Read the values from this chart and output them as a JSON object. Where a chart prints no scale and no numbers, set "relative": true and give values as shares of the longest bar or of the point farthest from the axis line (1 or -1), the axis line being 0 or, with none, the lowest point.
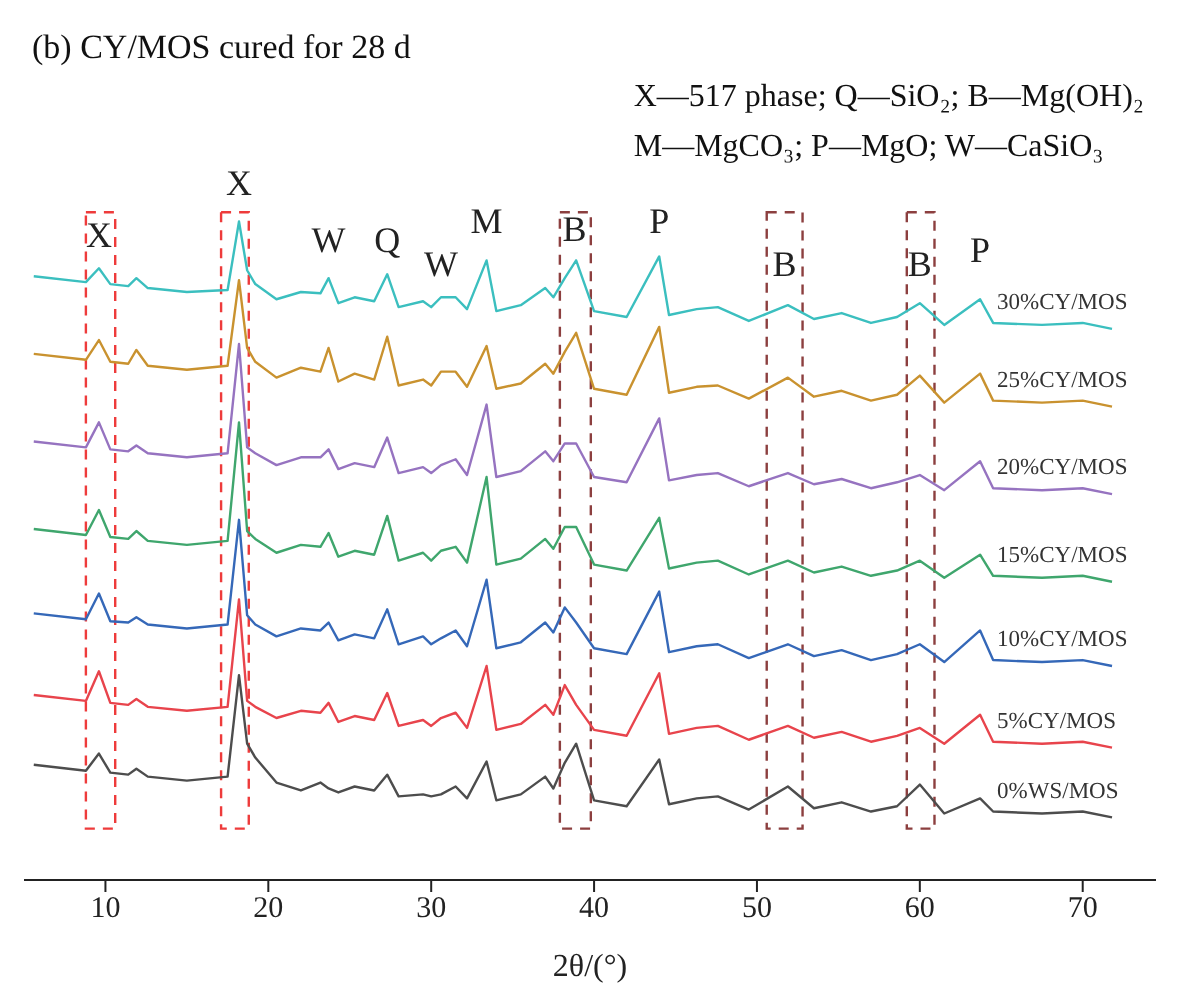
{
  "chart_data": {
    "type": "line",
    "title": "(b) CY/MOS cured for 28 d",
    "xlabel": "2θ/(°)",
    "relative": true,
    "legend": false,
    "grid": false,
    "marker": "none",
    "line_style": "solid",
    "xlim": [
      5,
      74.5
    ],
    "xticks": [
      10,
      20,
      30,
      40,
      50,
      60,
      70
    ],
    "x": [
      5.6,
      8.8,
      9.6,
      10.3,
      11.4,
      11.9,
      12.6,
      15.0,
      17.5,
      18.2,
      18.7,
      19.2,
      20.5,
      22.0,
      23.2,
      23.7,
      24.3,
      25.3,
      26.5,
      27.3,
      28.0,
      29.5,
      30.0,
      30.6,
      31.5,
      32.2,
      33.4,
      34.0,
      35.5,
      37.0,
      37.5,
      38.2,
      38.9,
      40.0,
      42.0,
      44.0,
      44.6,
      46.3,
      47.6,
      49.5,
      51.9,
      53.5,
      55.2,
      57.0,
      58.6,
      60.0,
      61.5,
      63.7,
      64.5,
      67.5,
      70.0,
      71.8
    ],
    "series": [
      {
        "name": "30%CY/MOS",
        "color": "#3bbfbf",
        "values": [
          0.917,
          0.908,
          0.929,
          0.905,
          0.902,
          0.914,
          0.899,
          0.893,
          0.896,
          1,
          0.926,
          0.905,
          0.882,
          0.893,
          0.891,
          0.914,
          0.876,
          0.885,
          0.879,
          0.92,
          0.87,
          0.879,
          0.87,
          0.885,
          0.885,
          0.867,
          0.941,
          0.864,
          0.873,
          0.899,
          0.885,
          0.914,
          0.941,
          0.864,
          0.855,
          0.947,
          0.858,
          0.867,
          0.87,
          0.849,
          0.873,
          0.852,
          0.861,
          0.846,
          0.855,
          0.876,
          0.843,
          0.882,
          0.846,
          0.843,
          0.846,
          0.837
        ]
      },
      {
        "name": "25%CY/MOS",
        "color": "#c9922f",
        "values": [
          0.799,
          0.79,
          0.82,
          0.787,
          0.784,
          0.805,
          0.781,
          0.775,
          0.781,
          0.911,
          0.808,
          0.787,
          0.763,
          0.778,
          0.772,
          0.808,
          0.757,
          0.769,
          0.76,
          0.825,
          0.751,
          0.76,
          0.751,
          0.772,
          0.772,
          0.749,
          0.811,
          0.746,
          0.754,
          0.784,
          0.769,
          0.802,
          0.831,
          0.746,
          0.737,
          0.84,
          0.74,
          0.749,
          0.751,
          0.731,
          0.763,
          0.734,
          0.743,
          0.728,
          0.737,
          0.766,
          0.725,
          0.769,
          0.728,
          0.725,
          0.728,
          0.719
        ]
      },
      {
        "name": "20%CY/MOS",
        "color": "#9673c0",
        "values": [
          0.666,
          0.657,
          0.695,
          0.654,
          0.651,
          0.66,
          0.648,
          0.642,
          0.648,
          0.814,
          0.657,
          0.648,
          0.63,
          0.642,
          0.642,
          0.654,
          0.624,
          0.633,
          0.627,
          0.672,
          0.618,
          0.627,
          0.618,
          0.63,
          0.639,
          0.615,
          0.722,
          0.612,
          0.621,
          0.651,
          0.636,
          0.663,
          0.663,
          0.612,
          0.604,
          0.701,
          0.607,
          0.615,
          0.618,
          0.598,
          0.618,
          0.601,
          0.609,
          0.595,
          0.604,
          0.615,
          0.592,
          0.636,
          0.595,
          0.592,
          0.595,
          0.586
        ]
      },
      {
        "name": "15%CY/MOS",
        "color": "#3fa66d",
        "values": [
          0.533,
          0.524,
          0.562,
          0.521,
          0.518,
          0.53,
          0.515,
          0.509,
          0.515,
          0.695,
          0.53,
          0.518,
          0.497,
          0.509,
          0.506,
          0.527,
          0.491,
          0.5,
          0.494,
          0.553,
          0.485,
          0.497,
          0.485,
          0.5,
          0.506,
          0.482,
          0.612,
          0.479,
          0.488,
          0.518,
          0.503,
          0.536,
          0.536,
          0.479,
          0.47,
          0.55,
          0.473,
          0.482,
          0.485,
          0.464,
          0.485,
          0.467,
          0.476,
          0.462,
          0.47,
          0.485,
          0.459,
          0.494,
          0.462,
          0.459,
          0.462,
          0.453
        ]
      },
      {
        "name": "10%CY/MOS",
        "color": "#3568b8",
        "values": [
          0.405,
          0.396,
          0.435,
          0.393,
          0.391,
          0.399,
          0.388,
          0.382,
          0.388,
          0.547,
          0.402,
          0.388,
          0.37,
          0.382,
          0.379,
          0.391,
          0.364,
          0.373,
          0.367,
          0.411,
          0.358,
          0.37,
          0.358,
          0.367,
          0.379,
          0.355,
          0.456,
          0.352,
          0.361,
          0.391,
          0.376,
          0.414,
          0.391,
          0.352,
          0.343,
          0.438,
          0.346,
          0.355,
          0.358,
          0.337,
          0.358,
          0.34,
          0.349,
          0.334,
          0.343,
          0.358,
          0.331,
          0.379,
          0.334,
          0.331,
          0.334,
          0.325
        ]
      },
      {
        "name": "5%CY/MOS",
        "color": "#e8444c",
        "values": [
          0.281,
          0.272,
          0.317,
          0.269,
          0.266,
          0.275,
          0.263,
          0.257,
          0.263,
          0.426,
          0.272,
          0.263,
          0.246,
          0.257,
          0.254,
          0.269,
          0.24,
          0.249,
          0.243,
          0.284,
          0.234,
          0.243,
          0.234,
          0.246,
          0.254,
          0.231,
          0.325,
          0.228,
          0.237,
          0.266,
          0.251,
          0.296,
          0.266,
          0.228,
          0.219,
          0.314,
          0.222,
          0.231,
          0.234,
          0.213,
          0.234,
          0.216,
          0.225,
          0.21,
          0.219,
          0.231,
          0.207,
          0.251,
          0.21,
          0.207,
          0.21,
          0.201
        ]
      },
      {
        "name": "0%WS/MOS",
        "color": "#4d4d4d",
        "values": [
          0.175,
          0.166,
          0.192,
          0.163,
          0.16,
          0.169,
          0.157,
          0.151,
          0.157,
          0.311,
          0.207,
          0.186,
          0.148,
          0.136,
          0.148,
          0.139,
          0.133,
          0.142,
          0.136,
          0.16,
          0.127,
          0.13,
          0.127,
          0.13,
          0.142,
          0.124,
          0.18,
          0.121,
          0.13,
          0.157,
          0.139,
          0.178,
          0.207,
          0.121,
          0.112,
          0.183,
          0.115,
          0.124,
          0.127,
          0.107,
          0.142,
          0.109,
          0.118,
          0.104,
          0.112,
          0.145,
          0.101,
          0.124,
          0.104,
          0.101,
          0.104,
          0.095
        ]
      }
    ],
    "annotations": [
      "X—517 phase; Q—SiO₂; B—Mg(OH)₂",
      "M—MgCO₃; P—MgO; W—CaSiO₃",
      "X",
      "X",
      "W",
      "Q",
      "W",
      "M",
      "B",
      "P",
      "B",
      "B",
      "P"
    ]
  }
}
